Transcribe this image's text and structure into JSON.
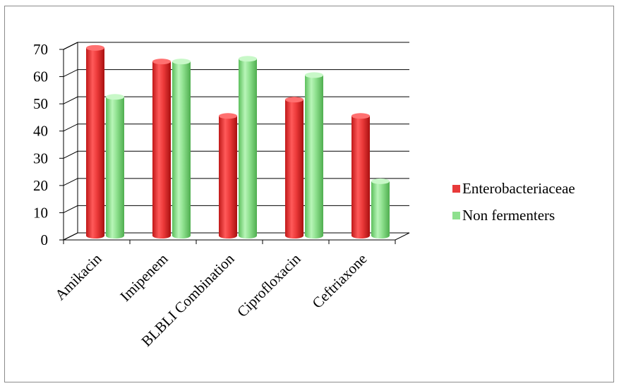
{
  "chart_data": {
    "type": "bar",
    "categories": [
      "Amikacin",
      "Imipenem",
      "BLBLI Combination",
      "Ciprofloxacin",
      "Ceftriaxone"
    ],
    "series": [
      {
        "name": "Enterobacteriaceae",
        "values": [
          69,
          64,
          44,
          50,
          44
        ],
        "color": "#e83a3a"
      },
      {
        "name": "Non fermenters",
        "values": [
          51,
          64,
          65,
          59,
          20
        ],
        "color": "#8ee08e"
      }
    ],
    "yticks": [
      "0",
      "10",
      "20",
      "30",
      "40",
      "50",
      "60",
      "70"
    ],
    "ylim": [
      0,
      70
    ],
    "grid": true,
    "legend_position": "right",
    "style": "3d-cylinder"
  }
}
